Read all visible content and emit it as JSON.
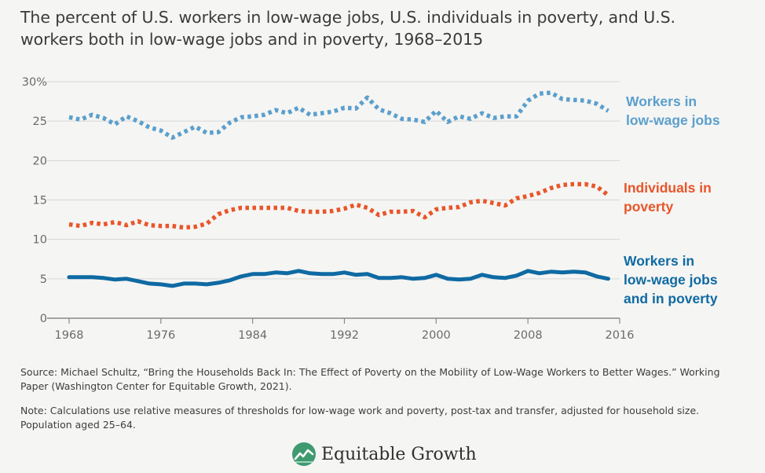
{
  "title": "The percent of U.S. workers in low-wage jobs, U.S. individuals in poverty, and U.S. workers both in low-wage jobs and in poverty, 1968–2015",
  "source": "Source: Michael Schultz, “Bring the Households Back In: The Effect of Poverty on the Mobility of Low-Wage Workers to Better Wages.” Working Paper (Washington Center for Equitable Growth, 2021).",
  "note": "Note: Calculations use relative measures of thresholds for low-wage work and poverty, post-tax and transfer, adjusted for household size. Population aged 25–64.",
  "brand": {
    "name": "Equitable Growth",
    "icon": "equitable-growth-logo-icon"
  },
  "chart_data": {
    "type": "line",
    "title": "The percent of U.S. workers in low-wage jobs, U.S. individuals in poverty, and U.S. workers both in low-wage jobs and in poverty, 1968–2015",
    "xlabel": "",
    "ylabel": "",
    "xlim": [
      1968,
      2016
    ],
    "ylim": [
      0,
      30
    ],
    "xticks": [
      1968,
      1976,
      1984,
      1992,
      2000,
      2008,
      2016
    ],
    "xtick_labels": [
      "1968",
      "1976",
      "1984",
      "1992",
      "2000",
      "2008",
      "2016"
    ],
    "yticks": [
      0,
      5,
      10,
      15,
      20,
      25,
      30
    ],
    "ytick_labels": [
      "0",
      "5",
      "10",
      "15",
      "20",
      "25",
      "30%"
    ],
    "grid": "horizontal",
    "x": [
      1968,
      1969,
      1970,
      1971,
      1972,
      1973,
      1974,
      1975,
      1976,
      1977,
      1978,
      1979,
      1980,
      1981,
      1982,
      1983,
      1984,
      1985,
      1986,
      1987,
      1988,
      1989,
      1990,
      1991,
      1992,
      1993,
      1994,
      1995,
      1996,
      1997,
      1998,
      1999,
      2000,
      2001,
      2002,
      2003,
      2004,
      2005,
      2006,
      2007,
      2008,
      2009,
      2010,
      2011,
      2012,
      2013,
      2014,
      2015
    ],
    "series": [
      {
        "name": "Workers in low-wage jobs",
        "label_lines": [
          "Workers in",
          "low-wage jobs"
        ],
        "color": "#5b9fcd",
        "style": "dotted",
        "values": [
          25.5,
          25.2,
          25.8,
          25.4,
          24.6,
          25.6,
          25.0,
          24.2,
          23.8,
          22.9,
          23.6,
          24.3,
          23.5,
          23.6,
          24.8,
          25.5,
          25.6,
          25.8,
          26.4,
          26.0,
          26.7,
          25.8,
          26.0,
          26.2,
          26.7,
          26.6,
          28.0,
          26.5,
          26.0,
          25.3,
          25.2,
          24.9,
          26.3,
          24.9,
          25.6,
          25.3,
          26.0,
          25.4,
          25.6,
          25.6,
          27.6,
          28.5,
          28.6,
          27.8,
          27.7,
          27.6,
          27.2,
          26.3
        ]
      },
      {
        "name": "Individuals in poverty",
        "label_lines": [
          "Individuals in",
          "poverty"
        ],
        "color": "#e8562a",
        "style": "dotted",
        "values": [
          11.9,
          11.7,
          12.1,
          11.9,
          12.2,
          11.8,
          12.3,
          11.8,
          11.7,
          11.7,
          11.5,
          11.6,
          12.0,
          13.2,
          13.7,
          14.0,
          14.0,
          14.0,
          14.0,
          14.0,
          13.6,
          13.5,
          13.5,
          13.6,
          13.9,
          14.4,
          14.0,
          13.1,
          13.5,
          13.5,
          13.6,
          12.8,
          13.8,
          14.0,
          14.1,
          14.7,
          14.9,
          14.6,
          14.3,
          15.2,
          15.5,
          15.9,
          16.5,
          16.9,
          17.0,
          17.0,
          16.7,
          15.6
        ]
      },
      {
        "name": "Workers in low-wage jobs and in poverty",
        "label_lines": [
          "Workers in",
          "low-wage jobs",
          "and in poverty"
        ],
        "color": "#0f6aa3",
        "style": "solid",
        "values": [
          5.2,
          5.2,
          5.2,
          5.1,
          4.9,
          5.0,
          4.7,
          4.4,
          4.3,
          4.1,
          4.4,
          4.4,
          4.3,
          4.5,
          4.8,
          5.3,
          5.6,
          5.6,
          5.8,
          5.7,
          6.0,
          5.7,
          5.6,
          5.6,
          5.8,
          5.5,
          5.6,
          5.1,
          5.1,
          5.2,
          5.0,
          5.1,
          5.5,
          5.0,
          4.9,
          5.0,
          5.5,
          5.2,
          5.1,
          5.4,
          6.0,
          5.7,
          5.9,
          5.8,
          5.9,
          5.8,
          5.3,
          5.0
        ]
      }
    ]
  }
}
